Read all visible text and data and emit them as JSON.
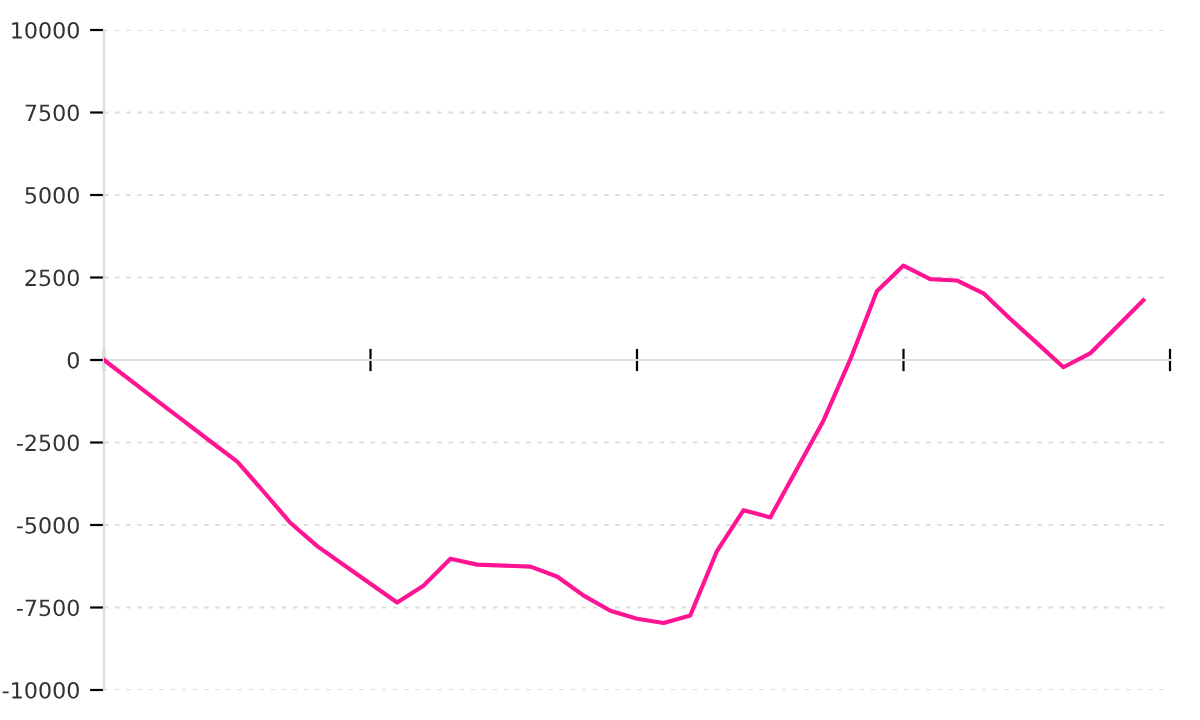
{
  "chart_data": {
    "type": "line",
    "categories": [
      null,
      null,
      null,
      null,
      null,
      null,
      null,
      null,
      null,
      null,
      null,
      null,
      null,
      null,
      null,
      null,
      null,
      null,
      null,
      null,
      null,
      null,
      null,
      null,
      null,
      null,
      null,
      null,
      null,
      null,
      null,
      null,
      null,
      null,
      null,
      null,
      null,
      null,
      null,
      null
    ],
    "ylim": [
      -10000,
      10000
    ],
    "yticks": [
      -10000,
      -7500,
      -5000,
      -2500,
      0,
      2500,
      5000,
      7500,
      10000
    ],
    "grid": "y",
    "line_style": "solid",
    "marker": "none",
    "series": [
      {
        "color": "#ff1493",
        "values": [
          0,
          -620,
          -1240,
          -1850,
          -2470,
          -3080,
          -4000,
          -4940,
          -5640,
          -6210,
          -6780,
          -7350,
          -6830,
          -6020,
          -6200,
          -6230,
          -6260,
          -6560,
          -7140,
          -7600,
          -7840,
          -7970,
          -7740,
          -5790,
          -4550,
          -4770,
          -3300,
          -1830,
          10,
          2080,
          2860,
          2450,
          2410,
          2020,
          1250,
          520,
          -220,
          200,
          1000,
          1810
        ]
      }
    ]
  }
}
